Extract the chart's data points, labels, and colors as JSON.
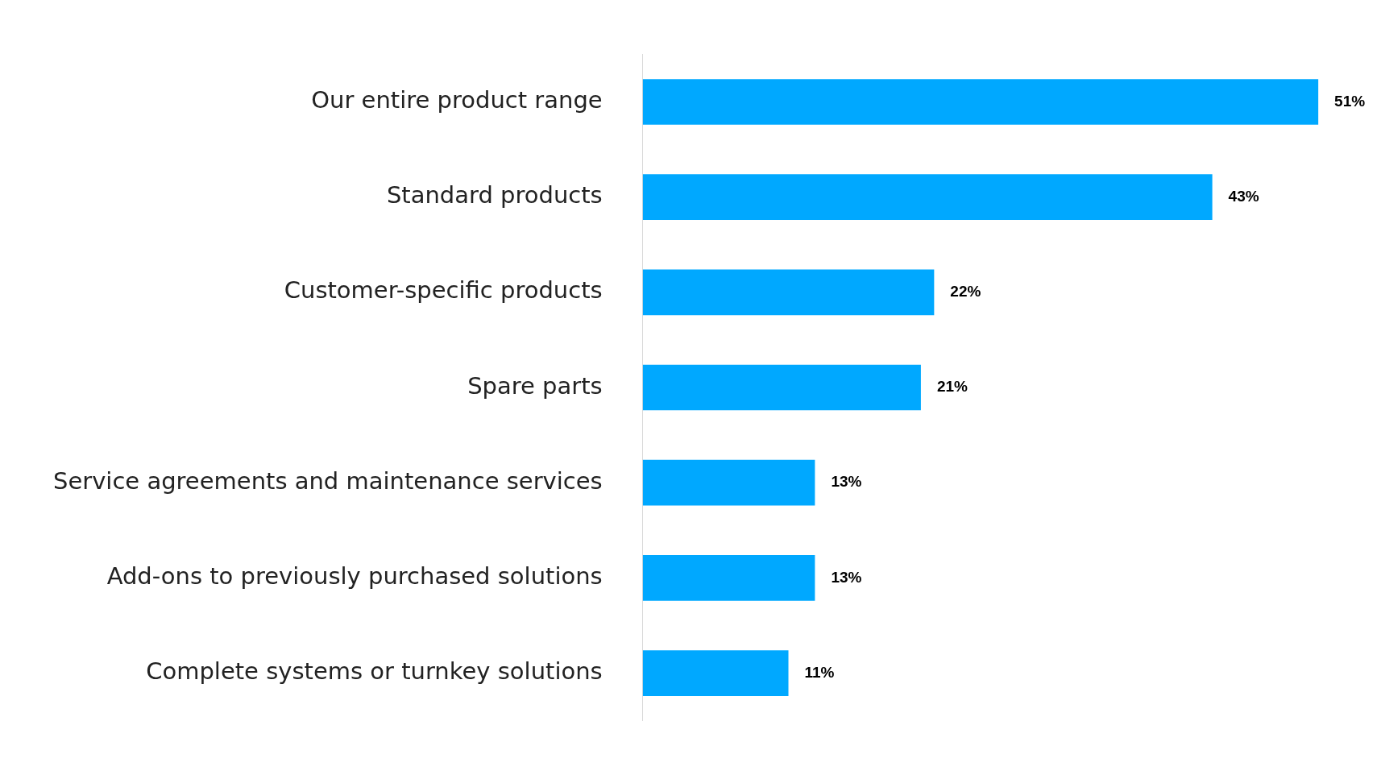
{
  "chart_data": {
    "type": "bar",
    "orientation": "horizontal",
    "categories": [
      "Our entire product range",
      "Standard products",
      "Customer-specific products",
      "Spare parts",
      "Service agreements and maintenance services",
      "Add-ons to previously purchased solutions",
      "Complete systems or turnkey solutions"
    ],
    "values": [
      51,
      43,
      22,
      21,
      13,
      13,
      11
    ],
    "value_labels": [
      "51%",
      "43%",
      "22%",
      "21%",
      "13%",
      "13%",
      "11%"
    ],
    "color": "#00a8ff",
    "tick_labels": "y"
  }
}
